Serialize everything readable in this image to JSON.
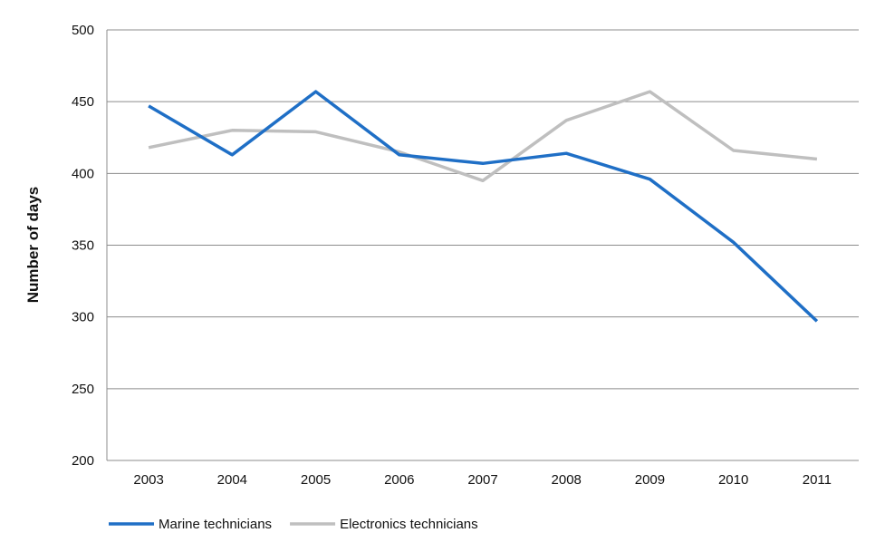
{
  "chart_data": {
    "type": "line",
    "title": "",
    "xlabel": "",
    "ylabel": "Number of days",
    "categories": [
      "2003",
      "2004",
      "2005",
      "2006",
      "2007",
      "2008",
      "2009",
      "2010",
      "2011"
    ],
    "ylim": [
      200,
      500
    ],
    "yticks": [
      200,
      250,
      300,
      350,
      400,
      450,
      500
    ],
    "grid": true,
    "legend_position": "bottom-left",
    "series": [
      {
        "name": "Marine technicians",
        "color": "#1f6fc6",
        "values": [
          447,
          413,
          457,
          413,
          407,
          414,
          396,
          352,
          297
        ]
      },
      {
        "name": "Electronics technicians",
        "color": "#bfbfbf",
        "values": [
          418,
          430,
          429,
          415,
          395,
          437,
          457,
          416,
          410
        ]
      }
    ]
  }
}
